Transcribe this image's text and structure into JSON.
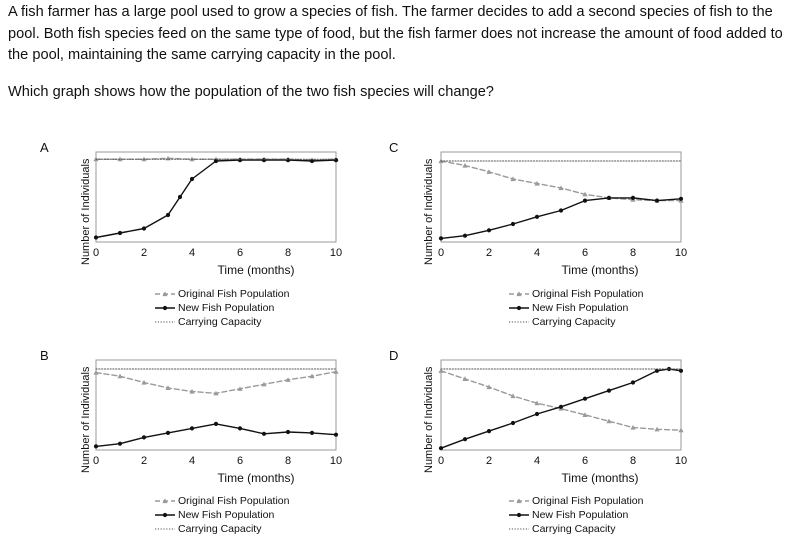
{
  "question": {
    "paragraph": "A fish farmer has a large pool used to grow a species of fish. The farmer decides to add a second species of fish to the pool. Both fish species feed on the same type of food, but the fish farmer does not increase the amount of food added to the pool, maintaining the same carrying capacity in the pool.",
    "prompt": "Which graph shows how the population of the two fish species will change?"
  },
  "colors": {
    "original": "#9a9a9a",
    "new": "#111111",
    "capacity": "#555555"
  },
  "chart_data": [
    {
      "panel": "A",
      "type": "line",
      "xlabel": "Time (months)",
      "ylabel": "Number of Individuals",
      "xlim": [
        0,
        10
      ],
      "ylim": [
        0,
        10
      ],
      "x_ticks": [
        "0",
        "2",
        "4",
        "6",
        "8",
        "10"
      ],
      "series": [
        {
          "name": "Original Fish Population",
          "style": "dashed-triangle",
          "x": [
            0,
            1,
            2,
            3,
            4,
            5,
            6,
            7,
            8,
            9,
            10
          ],
          "y": [
            9.2,
            9.2,
            9.2,
            9.3,
            9.2,
            9.2,
            9.2,
            9.2,
            9.2,
            9.1,
            9.2
          ]
        },
        {
          "name": "New Fish Population",
          "style": "solid-dot",
          "x": [
            0,
            1,
            2,
            3,
            3.5,
            4,
            5,
            6,
            7,
            8,
            9,
            10
          ],
          "y": [
            0.5,
            1.0,
            1.5,
            3.0,
            5.0,
            7.0,
            9.0,
            9.1,
            9.1,
            9.1,
            9.0,
            9.1
          ]
        },
        {
          "name": "Carrying Capacity",
          "style": "dotted",
          "x": [
            0,
            10
          ],
          "y": [
            9.2,
            9.2
          ]
        }
      ]
    },
    {
      "panel": "C",
      "type": "line",
      "xlabel": "Time (months)",
      "ylabel": "Number of Individuals",
      "xlim": [
        0,
        10
      ],
      "ylim": [
        0,
        10
      ],
      "x_ticks": [
        "0",
        "2",
        "4",
        "6",
        "8",
        "10"
      ],
      "series": [
        {
          "name": "Original Fish Population",
          "style": "dashed-triangle",
          "x": [
            0,
            1,
            2,
            3,
            4,
            5,
            6,
            7,
            8,
            9,
            10
          ],
          "y": [
            9.0,
            8.5,
            7.8,
            7.0,
            6.5,
            6.0,
            5.3,
            4.9,
            4.7,
            4.6,
            4.6
          ]
        },
        {
          "name": "New Fish Population",
          "style": "solid-dot",
          "x": [
            0,
            1,
            2,
            3,
            4,
            5,
            6,
            7,
            8,
            9,
            10
          ],
          "y": [
            0.4,
            0.7,
            1.3,
            2.0,
            2.8,
            3.5,
            4.6,
            4.9,
            4.9,
            4.6,
            4.8
          ]
        },
        {
          "name": "Carrying Capacity",
          "style": "dotted",
          "x": [
            0,
            10
          ],
          "y": [
            9.0,
            9.0
          ]
        }
      ]
    },
    {
      "panel": "B",
      "type": "line",
      "xlabel": "Time (months)",
      "ylabel": "Number of Individuals",
      "xlim": [
        0,
        10
      ],
      "ylim": [
        0,
        10
      ],
      "x_ticks": [
        "0",
        "2",
        "4",
        "6",
        "8",
        "10"
      ],
      "series": [
        {
          "name": "Original Fish Population",
          "style": "dashed-triangle",
          "x": [
            0,
            1,
            2,
            3,
            4,
            5,
            6,
            7,
            8,
            9,
            10
          ],
          "y": [
            8.6,
            8.2,
            7.5,
            6.9,
            6.5,
            6.3,
            6.8,
            7.3,
            7.8,
            8.2,
            8.7
          ]
        },
        {
          "name": "New Fish Population",
          "style": "solid-dot",
          "x": [
            0,
            1,
            2,
            3,
            4,
            5,
            6,
            7,
            8,
            9,
            10
          ],
          "y": [
            0.4,
            0.7,
            1.4,
            1.9,
            2.4,
            2.9,
            2.4,
            1.8,
            2.0,
            1.9,
            1.7
          ]
        },
        {
          "name": "Carrying Capacity",
          "style": "dotted",
          "x": [
            0,
            10
          ],
          "y": [
            9.0,
            9.0
          ]
        }
      ]
    },
    {
      "panel": "D",
      "type": "line",
      "xlabel": "Time (months)",
      "ylabel": "Number of Individuals",
      "xlim": [
        0,
        10
      ],
      "ylim": [
        0,
        10
      ],
      "x_ticks": [
        "0",
        "2",
        "4",
        "6",
        "8",
        "10"
      ],
      "series": [
        {
          "name": "Original Fish Population",
          "style": "dashed-triangle",
          "x": [
            0,
            1,
            2,
            3,
            4,
            5,
            6,
            7,
            8,
            9,
            10
          ],
          "y": [
            8.8,
            7.9,
            7.0,
            6.0,
            5.2,
            4.6,
            3.9,
            3.2,
            2.5,
            2.3,
            2.2
          ]
        },
        {
          "name": "New Fish Population",
          "style": "solid-dot",
          "x": [
            0,
            1,
            2,
            3,
            4,
            5,
            6,
            7,
            8,
            9,
            9.5,
            10
          ],
          "y": [
            0.2,
            1.2,
            2.1,
            3.0,
            4.0,
            4.8,
            5.7,
            6.6,
            7.5,
            8.8,
            9.0,
            8.8
          ]
        },
        {
          "name": "Carrying Capacity",
          "style": "dotted",
          "x": [
            0,
            10
          ],
          "y": [
            9.0,
            9.0
          ]
        }
      ]
    }
  ]
}
